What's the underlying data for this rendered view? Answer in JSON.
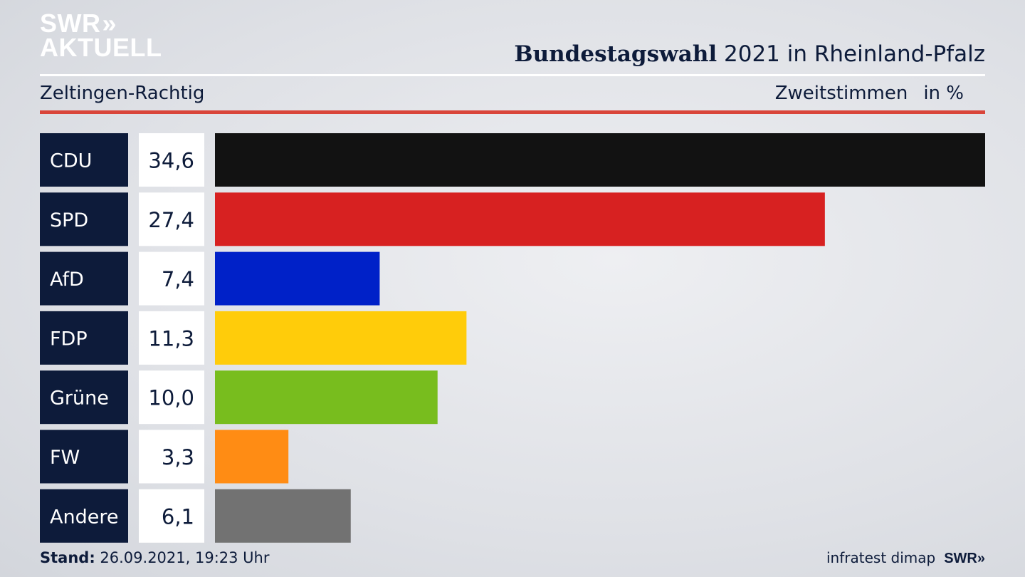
{
  "logo": {
    "line1": "SWR",
    "arrows": "»",
    "line2": "AKTUELL"
  },
  "header": {
    "title_bold": "Bundestagswahl",
    "title_rest": " 2021 in Rheinland-Pfalz",
    "region": "Zeltingen-Rachtig",
    "measure": "Zweitstimmen",
    "unit": "in %"
  },
  "footer": {
    "stand_label": "Stand:",
    "stand_value": " 26.09.2021, 19:23 Uhr",
    "source": "infratest dimap",
    "brand": "SWR»"
  },
  "chart_data": {
    "type": "bar",
    "orientation": "horizontal",
    "categories": [
      "CDU",
      "SPD",
      "AfD",
      "FDP",
      "Grüne",
      "FW",
      "Andere"
    ],
    "values": [
      34.6,
      27.4,
      7.4,
      11.3,
      10.0,
      3.3,
      6.1
    ],
    "value_labels": [
      "34,6",
      "27,4",
      "7,4",
      "11,3",
      "10,0",
      "3,3",
      "6,1"
    ],
    "colors": [
      "#121212",
      "#d72121",
      "#0021c8",
      "#ffcc0a",
      "#78bd1e",
      "#ff8c14",
      "#727272"
    ],
    "label_box_color": "#0d1b3a",
    "value_box_color": "#ffffff",
    "xlim": [
      0,
      34.6
    ]
  }
}
